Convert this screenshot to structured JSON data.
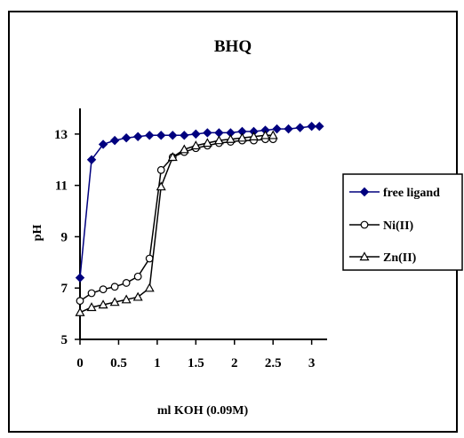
{
  "chart_data": {
    "type": "line",
    "title": "BHQ",
    "xlabel": "ml KOH (0.09M)",
    "ylabel": "pH",
    "xlim": [
      0,
      3.2
    ],
    "ylim": [
      5,
      14
    ],
    "xticks": [
      0,
      0.5,
      1,
      1.5,
      2,
      2.5,
      3
    ],
    "xtick_labels": [
      "0",
      "0.5",
      "1",
      "1.5",
      "2",
      "2.5",
      "3"
    ],
    "yticks": [
      5,
      7,
      9,
      11,
      13
    ],
    "ytick_labels": [
      "5",
      "7",
      "9",
      "11",
      "13"
    ],
    "grid": false,
    "legend_position": "right",
    "series": [
      {
        "name": "free ligand",
        "marker": "diamond",
        "color": "#00007f",
        "x": [
          0,
          0.15,
          0.3,
          0.45,
          0.6,
          0.75,
          0.9,
          1.05,
          1.2,
          1.35,
          1.5,
          1.65,
          1.8,
          1.95,
          2.1,
          2.25,
          2.4,
          2.55,
          2.7,
          2.85,
          3.0,
          3.1
        ],
        "y": [
          7.4,
          12.0,
          12.6,
          12.75,
          12.85,
          12.9,
          12.95,
          12.95,
          12.95,
          12.95,
          13.0,
          13.05,
          13.05,
          13.05,
          13.1,
          13.1,
          13.15,
          13.2,
          13.2,
          13.25,
          13.3,
          13.3
        ]
      },
      {
        "name": "Ni(II)",
        "marker": "circle",
        "color": "#000000",
        "x": [
          0,
          0.15,
          0.3,
          0.45,
          0.6,
          0.75,
          0.9,
          1.05,
          1.2,
          1.35,
          1.5,
          1.65,
          1.8,
          1.95,
          2.1,
          2.25,
          2.4,
          2.5
        ],
        "y": [
          6.5,
          6.8,
          6.95,
          7.05,
          7.2,
          7.45,
          8.15,
          11.6,
          12.1,
          12.3,
          12.45,
          12.55,
          12.65,
          12.7,
          12.75,
          12.75,
          12.8,
          12.8
        ]
      },
      {
        "name": "Zn(II)",
        "marker": "triangle",
        "color": "#000000",
        "x": [
          0,
          0.15,
          0.3,
          0.45,
          0.6,
          0.75,
          0.9,
          1.05,
          1.2,
          1.35,
          1.5,
          1.65,
          1.8,
          1.95,
          2.1,
          2.25,
          2.4,
          2.5
        ],
        "y": [
          6.05,
          6.25,
          6.35,
          6.45,
          6.55,
          6.65,
          7.0,
          10.95,
          12.1,
          12.4,
          12.55,
          12.65,
          12.75,
          12.8,
          12.85,
          12.9,
          12.95,
          12.95
        ]
      }
    ]
  }
}
